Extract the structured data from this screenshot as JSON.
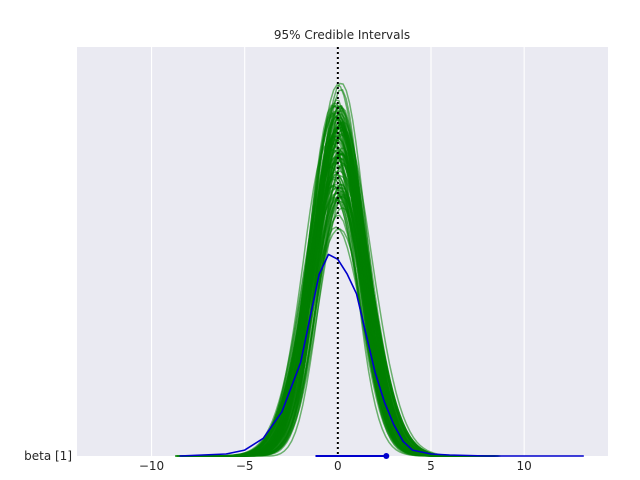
{
  "chart_data": {
    "type": "area",
    "title": "95% Credible Intervals",
    "xlabel": "",
    "ylabel": "",
    "x_ticks": [
      -10,
      -5,
      0,
      5,
      10
    ],
    "x_tick_labels": [
      "−10",
      "−5",
      "0",
      "5",
      "10"
    ],
    "xlim": [
      -14,
      14.5
    ],
    "row_labels": [
      "beta [1]"
    ],
    "grid": true,
    "reference_line": {
      "x": 0,
      "style": "dotted",
      "color": "#000000"
    },
    "series": [
      {
        "role": "posterior draws",
        "draw_count_estimate": 100,
        "color": "#008000",
        "shape_estimate": {
          "center": 0.0,
          "sd": 1.4,
          "peak_density": 0.36,
          "spread_x": 7.8
        }
      },
      {
        "role": "mean density",
        "color": "#0000cc",
        "x": [
          -8.5,
          -6,
          -5,
          -4,
          -3,
          -2,
          -1.5,
          -1,
          -0.5,
          0,
          0.5,
          1,
          1.5,
          2,
          2.5,
          3,
          3.5,
          4,
          5,
          6,
          8,
          13.2
        ],
        "y": [
          0,
          0.002,
          0.006,
          0.018,
          0.045,
          0.095,
          0.14,
          0.185,
          0.205,
          0.2,
          0.185,
          0.165,
          0.125,
          0.085,
          0.055,
          0.032,
          0.015,
          0.006,
          0.002,
          0.001,
          0,
          0
        ]
      }
    ],
    "interval": {
      "low": -1.2,
      "high": 2.6,
      "point": 2.6,
      "color": "#0000cc"
    },
    "colors": {
      "background": "#eaeaf2",
      "grid": "#ffffff"
    }
  }
}
